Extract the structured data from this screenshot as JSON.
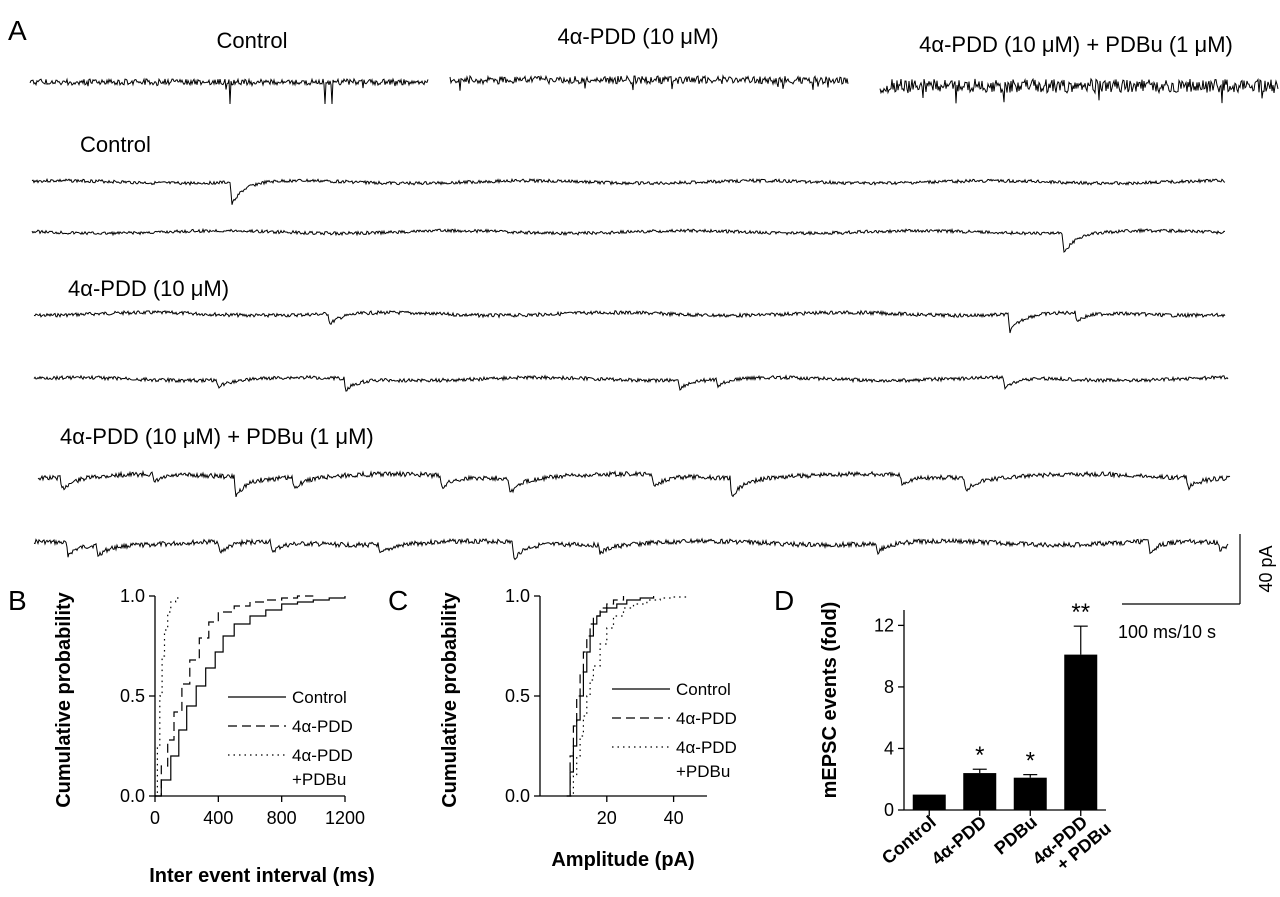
{
  "panel_A": {
    "label": "A",
    "overview_labels": [
      "Control",
      "4α-PDD (10 μM)",
      "4α-PDD (10 μM) + PDBu (1 μM)"
    ],
    "trace_labels": [
      "Control",
      "4α-PDD (10 μM)",
      "4α-PDD (10 μM) + PDBu (1 μM)"
    ],
    "scale_bar": {
      "vertical": "40 pA",
      "horizontal": "100 ms/10 s"
    }
  },
  "chart_data": [
    {
      "id": "B",
      "type": "line",
      "panel_label": "B",
      "xlabel": "Inter event interval (ms)",
      "ylabel": "Cumulative probability",
      "xlim": [
        0,
        1200
      ],
      "ylim": [
        0,
        1
      ],
      "xticks": [
        "0",
        "400",
        "800",
        "1200"
      ],
      "yticks": [
        "0.0",
        "0.5",
        "1.0"
      ],
      "legend": "right",
      "series": [
        {
          "name": "Control",
          "style": "solid",
          "x": [
            0,
            40,
            100,
            150,
            200,
            260,
            320,
            380,
            430,
            500,
            600,
            700,
            800,
            900,
            1000,
            1100,
            1200
          ],
          "y": [
            0,
            0.08,
            0.2,
            0.33,
            0.45,
            0.55,
            0.64,
            0.72,
            0.8,
            0.86,
            0.9,
            0.93,
            0.96,
            0.97,
            0.98,
            0.99,
            1.0
          ]
        },
        {
          "name": "4α-PDD",
          "style": "dashed",
          "x": [
            0,
            40,
            80,
            120,
            170,
            220,
            280,
            340,
            400,
            500,
            600,
            700,
            800,
            900,
            1000
          ],
          "y": [
            0,
            0.15,
            0.28,
            0.42,
            0.56,
            0.68,
            0.79,
            0.87,
            0.92,
            0.95,
            0.97,
            0.98,
            0.99,
            1.0,
            1.0
          ]
        },
        {
          "name": "4α-PDD\n+PDBu",
          "style": "dotted",
          "x": [
            0,
            15,
            30,
            45,
            60,
            80,
            100,
            130,
            160
          ],
          "y": [
            0,
            0.25,
            0.5,
            0.7,
            0.83,
            0.92,
            0.97,
            0.99,
            1.0
          ]
        }
      ]
    },
    {
      "id": "C",
      "type": "line",
      "panel_label": "C",
      "xlabel": "Amplitude (pA)",
      "ylabel": "Cumulative probability",
      "xlim": [
        0,
        50
      ],
      "ylim": [
        0,
        1
      ],
      "xticks": [
        "20",
        "40"
      ],
      "yticks": [
        "0.0",
        "0.5",
        "1.0"
      ],
      "legend": "right",
      "series": [
        {
          "name": "Control",
          "style": "solid",
          "x": [
            8,
            9,
            10,
            11,
            12,
            13,
            14,
            15,
            16,
            17,
            18,
            20,
            23,
            26,
            30,
            34
          ],
          "y": [
            0,
            0.12,
            0.25,
            0.38,
            0.5,
            0.62,
            0.72,
            0.8,
            0.86,
            0.9,
            0.92,
            0.94,
            0.96,
            0.98,
            0.99,
            1.0
          ]
        },
        {
          "name": "4α-PDD",
          "style": "dashed",
          "x": [
            8,
            9,
            10,
            11,
            12,
            13,
            14,
            15,
            16,
            18,
            20,
            22,
            25
          ],
          "y": [
            0,
            0.2,
            0.35,
            0.5,
            0.62,
            0.72,
            0.8,
            0.86,
            0.9,
            0.94,
            0.96,
            0.98,
            1.0
          ]
        },
        {
          "name": "4α-PDD\n+PDBu",
          "style": "dotted",
          "x": [
            9,
            10,
            11,
            12,
            13,
            14,
            15,
            16,
            18,
            20,
            22,
            25,
            28,
            32,
            36,
            40,
            44
          ],
          "y": [
            0,
            0.1,
            0.2,
            0.3,
            0.4,
            0.5,
            0.58,
            0.65,
            0.76,
            0.84,
            0.9,
            0.94,
            0.96,
            0.98,
            0.99,
            0.995,
            1.0
          ]
        }
      ]
    },
    {
      "id": "D",
      "type": "bar",
      "panel_label": "D",
      "ylabel": "mEPSC events (fold)",
      "ylim": [
        0,
        13
      ],
      "yticks": [
        "0",
        "4",
        "8",
        "12"
      ],
      "categories": [
        "Control",
        "4α-PDD",
        "PDBu",
        "4α-PDD\n+ PDBu"
      ],
      "values": [
        1.0,
        2.4,
        2.1,
        10.1
      ],
      "errors": [
        0,
        0.25,
        0.2,
        1.85
      ],
      "significance": [
        "",
        "*",
        "*",
        "**"
      ]
    }
  ]
}
